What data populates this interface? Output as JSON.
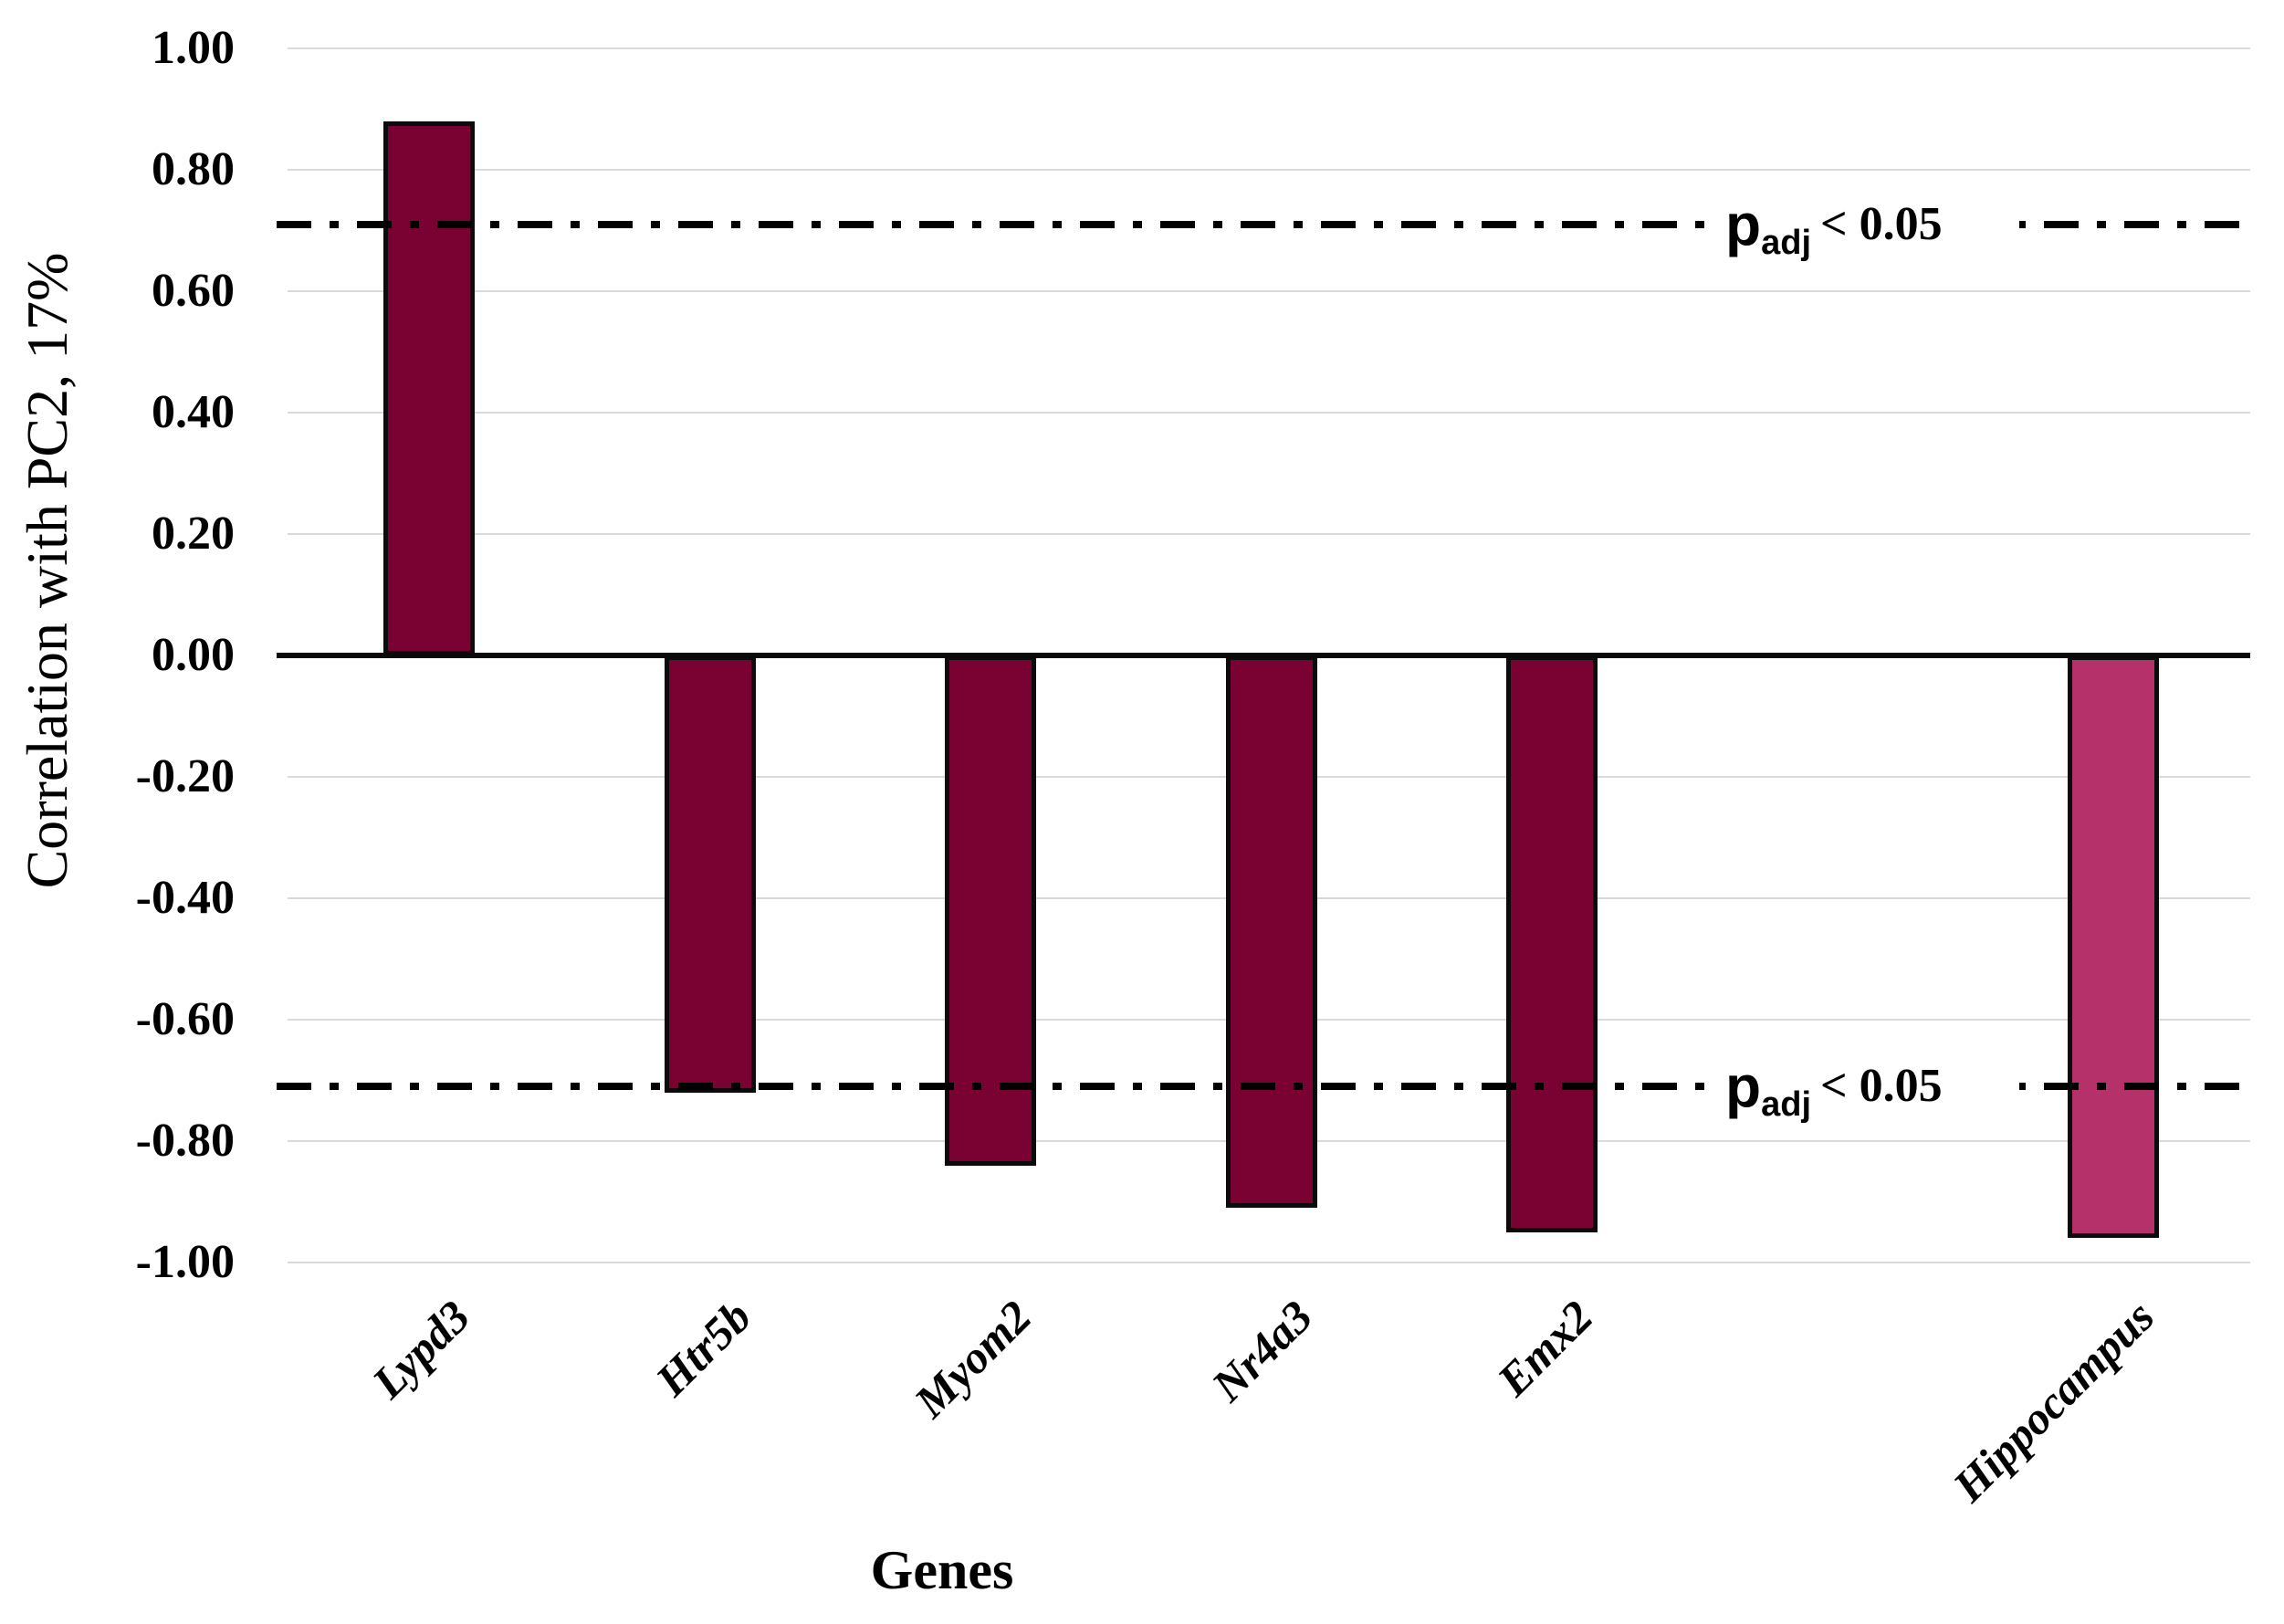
{
  "chart_data": {
    "type": "bar",
    "title": "",
    "xlabel": "Genes",
    "ylabel": "Correlation with PC2, 17%",
    "ylim": [
      -1.0,
      1.0
    ],
    "grid": true,
    "legend": false,
    "yticks": [
      {
        "v": 1.0,
        "label": "1.00"
      },
      {
        "v": 0.8,
        "label": "0.80"
      },
      {
        "v": 0.6,
        "label": "0.60"
      },
      {
        "v": 0.4,
        "label": "0.40"
      },
      {
        "v": 0.2,
        "label": "0.20"
      },
      {
        "v": 0.0,
        "label": "0.00"
      },
      {
        "v": -0.2,
        "label": "-0.20"
      },
      {
        "v": -0.4,
        "label": "-0.40"
      },
      {
        "v": -0.6,
        "label": "-0.60"
      },
      {
        "v": -0.8,
        "label": "-0.80"
      },
      {
        "v": -1.0,
        "label": "-1.00"
      }
    ],
    "bars": [
      {
        "label": "Lypd3",
        "value": 0.88,
        "slot": 0,
        "color": "#7A0233"
      },
      {
        "label": "Htr5b",
        "value": -0.72,
        "slot": 1,
        "color": "#7A0233"
      },
      {
        "label": "Myom2",
        "value": -0.84,
        "slot": 2,
        "color": "#7A0233"
      },
      {
        "label": "Nr4a3",
        "value": -0.91,
        "slot": 3,
        "color": "#7A0233"
      },
      {
        "label": "Emx2",
        "value": -0.95,
        "slot": 4,
        "color": "#7A0233"
      },
      {
        "label": "Hippocampus",
        "value": -0.96,
        "slot": 6,
        "color": "#B43169"
      }
    ],
    "reference_lines": [
      {
        "value": 0.71,
        "label_p": "p",
        "label_sub": "adj",
        "label_rest": "< 0.05"
      },
      {
        "value": -0.71,
        "label_p": "p",
        "label_sub": "adj",
        "label_rest": "< 0.05"
      }
    ]
  },
  "colors": {
    "bar_dark": "#7A0233",
    "bar_light": "#B43169",
    "gridline": "#DADADA",
    "axis_line": "#0A0A0A",
    "dash_line": "#000000",
    "text": "#000000"
  }
}
